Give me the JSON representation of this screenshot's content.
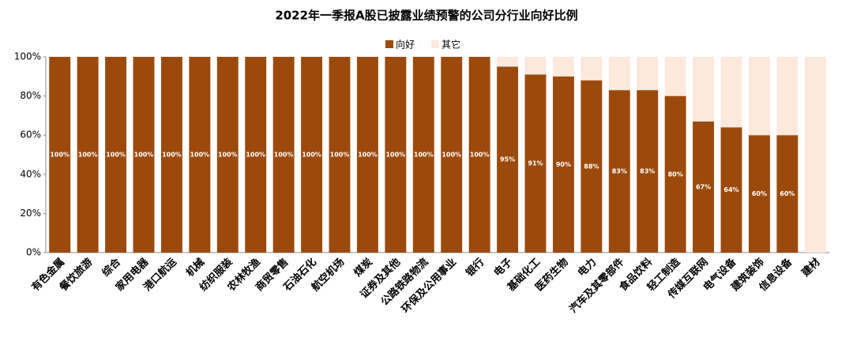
{
  "chart_data": {
    "type": "stacked-bar",
    "title": "2022年一季报A股已披露业绩预警的公司分行业向好比例",
    "categories": [
      "有色金属",
      "餐饮旅游",
      "综合",
      "家用电器",
      "港口航运",
      "机械",
      "纺织服装",
      "农林牧渔",
      "商贸零售",
      "石油石化",
      "航空机场",
      "煤炭",
      "证券及其他",
      "公路铁路物流",
      "环保及公用事业",
      "银行",
      "电子",
      "基础化工",
      "医药生物",
      "电力",
      "汽车及其零部件",
      "食品饮料",
      "轻工制造",
      "传媒互联网",
      "电气设备",
      "建筑装饰",
      "信息设备",
      "建材"
    ],
    "series": [
      {
        "name": "向好",
        "color": "#9c4a0c",
        "values": [
          100,
          100,
          100,
          100,
          100,
          100,
          100,
          100,
          100,
          100,
          100,
          100,
          100,
          100,
          100,
          100,
          95,
          91,
          90,
          88,
          83,
          83,
          80,
          67,
          64,
          60,
          60,
          0
        ],
        "value_labels": [
          "100%",
          "100%",
          "100%",
          "100%",
          "100%",
          "100%",
          "100%",
          "100%",
          "100%",
          "100%",
          "100%",
          "100%",
          "100%",
          "100%",
          "100%",
          "100%",
          "95%",
          "91%",
          "90%",
          "88%",
          "83%",
          "83%",
          "80%",
          "67%",
          "64%",
          "60%",
          "60%",
          null
        ]
      },
      {
        "name": "其它",
        "color": "#fde8dc",
        "values": [
          0,
          0,
          0,
          0,
          0,
          0,
          0,
          0,
          0,
          0,
          0,
          0,
          0,
          0,
          0,
          0,
          5,
          9,
          10,
          12,
          17,
          17,
          20,
          33,
          36,
          40,
          40,
          100
        ]
      }
    ],
    "ylim": [
      0,
      100
    ],
    "yticks": [
      {
        "value": 0,
        "label": "0%"
      },
      {
        "value": 20,
        "label": "20%"
      },
      {
        "value": 40,
        "label": "40%"
      },
      {
        "value": 60,
        "label": "60%"
      },
      {
        "value": 80,
        "label": "80%"
      },
      {
        "value": 100,
        "label": "100%"
      }
    ],
    "legend": "top"
  }
}
